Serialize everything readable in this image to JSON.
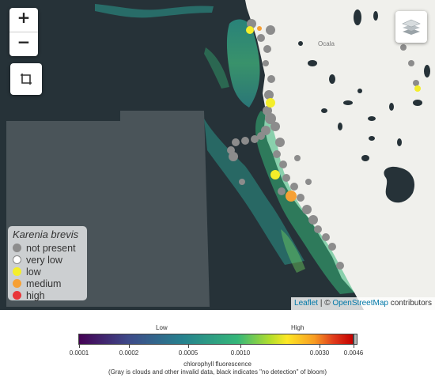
{
  "map": {
    "zoom_in": "+",
    "zoom_out": "−",
    "draw_icon": "crop-square-icon",
    "layers_icon": "layers-icon",
    "cities": [
      "Ocala"
    ],
    "colors": {
      "gulf": "#263238",
      "land": "#f0f0ec",
      "no_data": "#4a5459",
      "lakes": "#263238",
      "station_gray": "#888888"
    }
  },
  "legend": {
    "title": "Karenia brevis",
    "items": [
      {
        "label": "not present",
        "color": "#8c8c8c"
      },
      {
        "label": "very low",
        "color": "#ffffff"
      },
      {
        "label": "low",
        "color": "#f4ee2a"
      },
      {
        "label": "medium",
        "color": "#f6a034"
      },
      {
        "label": "high",
        "color": "#e8363a"
      }
    ]
  },
  "attribution": {
    "leaflet": "Leaflet",
    "separator": " | © ",
    "osm": "OpenStreetMap",
    "suffix": " contributors"
  },
  "colorbar": {
    "low_label": "Low",
    "high_label": "High",
    "ticks": [
      "0.0001",
      "0.0002",
      "0.0005",
      "0.0010",
      "0.0030",
      "0.0046"
    ],
    "title": "chlorophyll fluorescence",
    "note": "(Gray is clouds and other invalid data, black indicates \"no detection\" of bloom)"
  }
}
